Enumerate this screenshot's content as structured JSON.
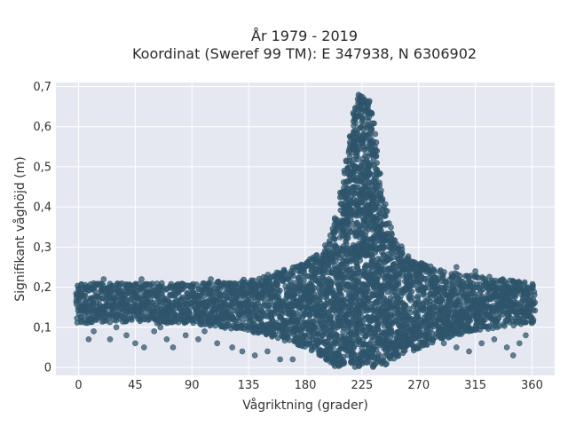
{
  "chart_data": {
    "type": "scatter",
    "title": "År 1979 - 2019",
    "subtitle": "Koordinat (Sweref 99 TM): E 347938, N 6306902",
    "xlabel": "Vågriktning (grader)",
    "ylabel": "Signifikant våghöjd (m)",
    "xlim": [
      -18,
      378
    ],
    "ylim": [
      -0.02,
      0.71
    ],
    "x_ticks": [
      0,
      45,
      90,
      135,
      180,
      225,
      270,
      315,
      360
    ],
    "y_ticks": [
      0,
      0.1,
      0.2,
      0.3,
      0.4,
      0.5,
      0.6,
      0.7
    ],
    "y_tick_labels": [
      "0",
      "0,1",
      "0,2",
      "0,3",
      "0,4",
      "0,5",
      "0,6",
      "0,7"
    ],
    "grid": true,
    "colors": {
      "marker": "#2e546b",
      "plot_bg": "#e5e8f0",
      "grid": "#ffffff"
    },
    "envelope": [
      [
        0,
        0.11,
        0.21
      ],
      [
        20,
        0.11,
        0.21
      ],
      [
        45,
        0.11,
        0.21
      ],
      [
        90,
        0.11,
        0.21
      ],
      [
        135,
        0.09,
        0.22
      ],
      [
        160,
        0.07,
        0.24
      ],
      [
        180,
        0.05,
        0.26
      ],
      [
        195,
        0.02,
        0.3
      ],
      [
        205,
        0.0,
        0.38
      ],
      [
        212,
        0.0,
        0.5
      ],
      [
        218,
        0.0,
        0.62
      ],
      [
        222,
        0.0,
        0.68
      ],
      [
        226,
        0.0,
        0.69
      ],
      [
        230,
        0.0,
        0.68
      ],
      [
        235,
        0.0,
        0.6
      ],
      [
        240,
        0.0,
        0.45
      ],
      [
        250,
        0.02,
        0.33
      ],
      [
        265,
        0.04,
        0.27
      ],
      [
        290,
        0.07,
        0.24
      ],
      [
        315,
        0.09,
        0.23
      ],
      [
        340,
        0.1,
        0.22
      ],
      [
        360,
        0.11,
        0.21
      ]
    ],
    "outliers": [
      [
        12,
        0.09
      ],
      [
        25,
        0.07
      ],
      [
        38,
        0.08
      ],
      [
        45,
        0.06
      ],
      [
        52,
        0.05
      ],
      [
        60,
        0.09
      ],
      [
        70,
        0.07
      ],
      [
        75,
        0.05
      ],
      [
        85,
        0.08
      ],
      [
        95,
        0.07
      ],
      [
        100,
        0.09
      ],
      [
        110,
        0.06
      ],
      [
        122,
        0.05
      ],
      [
        130,
        0.04
      ],
      [
        140,
        0.03
      ],
      [
        150,
        0.04
      ],
      [
        160,
        0.02
      ],
      [
        170,
        0.02
      ],
      [
        290,
        0.06
      ],
      [
        300,
        0.05
      ],
      [
        310,
        0.04
      ],
      [
        320,
        0.06
      ],
      [
        330,
        0.07
      ],
      [
        340,
        0.05
      ],
      [
        345,
        0.03
      ],
      [
        350,
        0.06
      ],
      [
        355,
        0.08
      ],
      [
        8,
        0.07
      ],
      [
        30,
        0.1
      ],
      [
        65,
        0.1
      ],
      [
        20,
        0.22
      ],
      [
        50,
        0.22
      ],
      [
        105,
        0.22
      ],
      [
        270,
        0.25
      ],
      [
        300,
        0.25
      ],
      [
        315,
        0.24
      ]
    ]
  }
}
